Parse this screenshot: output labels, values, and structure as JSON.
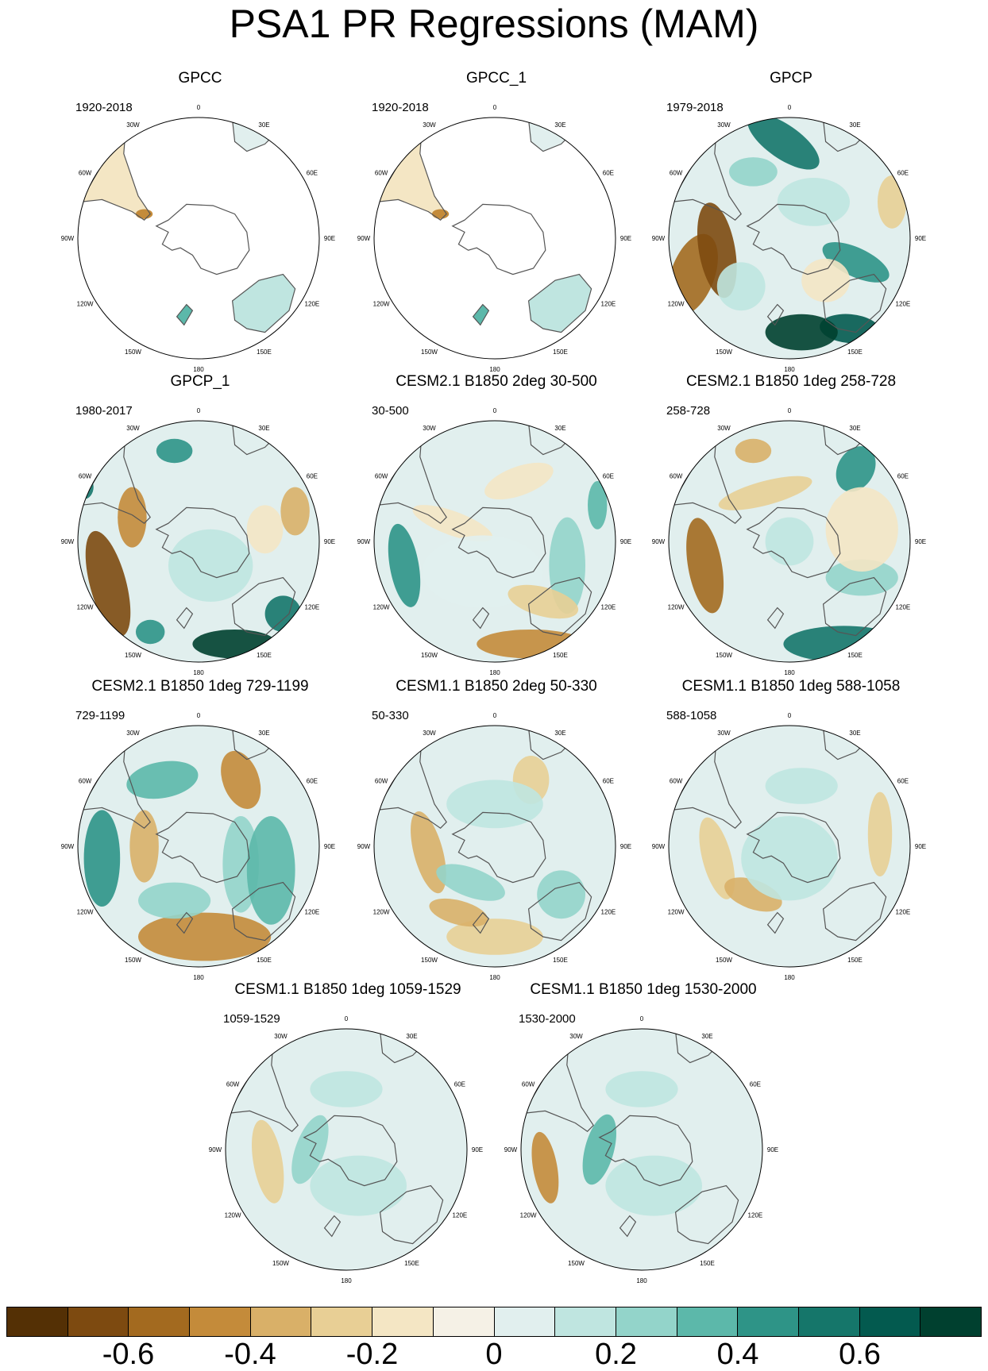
{
  "title": "PSA1 PR Regressions (MAM)",
  "lon_labels": [
    "0",
    "30E",
    "60E",
    "90E",
    "120E",
    "150E",
    "180",
    "150W",
    "120W",
    "90W",
    "60W",
    "30W"
  ],
  "panels": [
    {
      "title": "GPCC",
      "period": "1920-2018",
      "coverage": "land"
    },
    {
      "title": "GPCC_1",
      "period": "1920-2018",
      "coverage": "land"
    },
    {
      "title": "GPCP",
      "period": "1979-2018",
      "coverage": "full"
    },
    {
      "title": "GPCP_1",
      "period": "1980-2017",
      "coverage": "full"
    },
    {
      "title": "CESM2.1 B1850 2deg 30-500",
      "period": "30-500",
      "coverage": "full"
    },
    {
      "title": "CESM2.1 B1850 1deg 258-728",
      "period": "258-728",
      "coverage": "full"
    },
    {
      "title": "CESM2.1 B1850 1deg 729-1199",
      "period": "729-1199",
      "coverage": "full"
    },
    {
      "title": "CESM1.1 B1850 2deg 50-330",
      "period": "50-330",
      "coverage": "full"
    },
    {
      "title": "CESM1.1 B1850 1deg 588-1058",
      "period": "588-1058",
      "coverage": "full"
    },
    {
      "title": "CESM1.1 B1850 1deg 1059-1529",
      "period": "1059-1529",
      "coverage": "full"
    },
    {
      "title": "CESM1.1 B1850 1deg 1530-2000",
      "period": "1530-2000",
      "coverage": "full"
    }
  ],
  "colorbar": {
    "colors": [
      "#543005",
      "#7d4a10",
      "#a36a1f",
      "#c48b3a",
      "#d9b068",
      "#e8cf95",
      "#f4e6c4",
      "#f5f1e6",
      "#e1efee",
      "#bfe5e0",
      "#93d4ca",
      "#5cb8aa",
      "#2e9487",
      "#15766a",
      "#035a4f",
      "#00402f"
    ],
    "tick_labels": [
      "-0.6",
      "-0.4",
      "-0.2",
      "0",
      "0.2",
      "0.4",
      "0.6"
    ]
  }
}
